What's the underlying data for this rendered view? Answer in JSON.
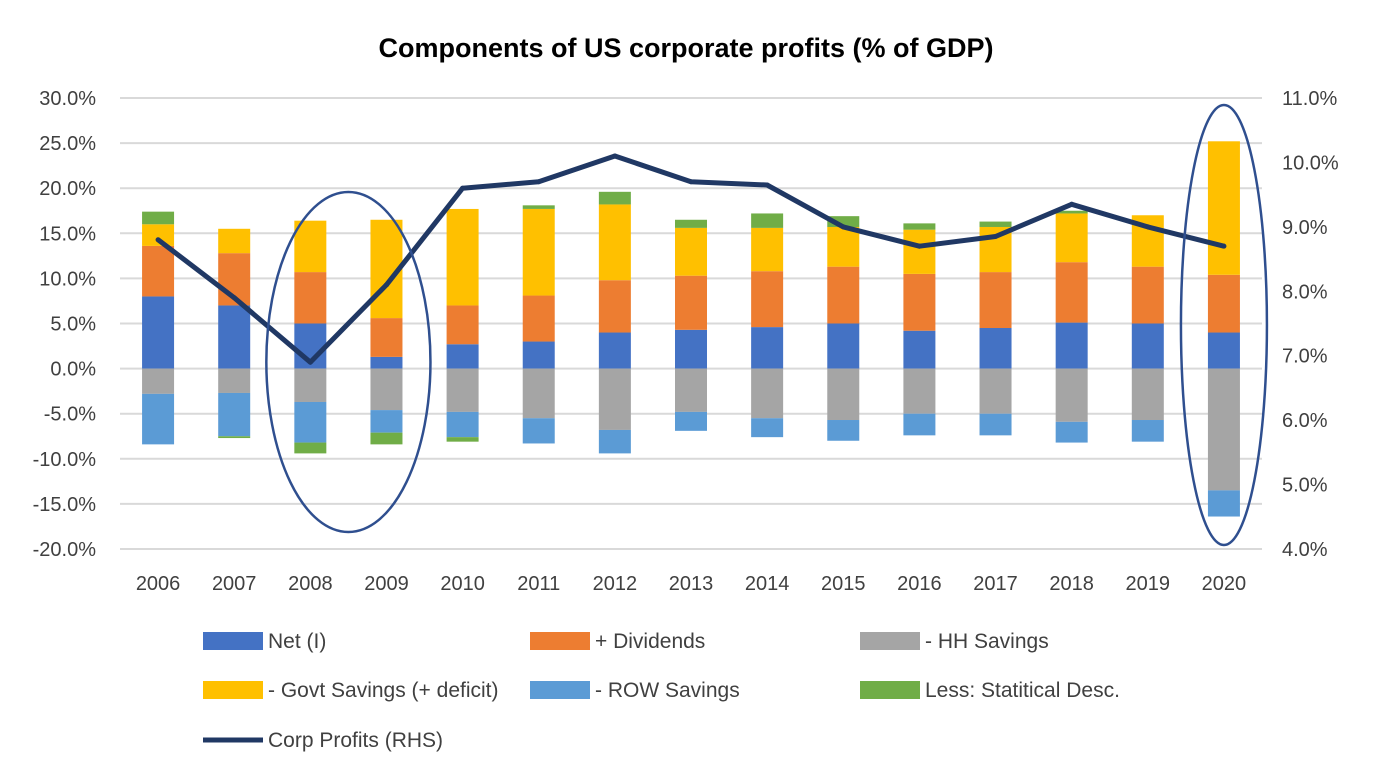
{
  "chart_data": {
    "type": "bar",
    "stacked": true,
    "title": "Components of US corporate profits (% of GDP)",
    "categories": [
      "2006",
      "2007",
      "2008",
      "2009",
      "2010",
      "2011",
      "2012",
      "2013",
      "2014",
      "2015",
      "2016",
      "2017",
      "2018",
      "2019",
      "2020"
    ],
    "y_left": {
      "min": -20,
      "max": 30,
      "step": 5,
      "tick_labels": [
        "-20.0%",
        "-15.0%",
        "-10.0%",
        "-5.0%",
        "0.0%",
        "5.0%",
        "10.0%",
        "15.0%",
        "20.0%",
        "25.0%",
        "30.0%"
      ]
    },
    "y_right": {
      "min": 4,
      "max": 11,
      "step": 1,
      "tick_labels": [
        "4.0%",
        "5.0%",
        "6.0%",
        "7.0%",
        "8.0%",
        "9.0%",
        "10.0%",
        "11.0%"
      ]
    },
    "positive_series": [
      {
        "name": "Net (I)",
        "color": "#4472c4",
        "values": [
          8.0,
          7.0,
          5.0,
          1.3,
          2.7,
          3.0,
          4.0,
          4.3,
          4.6,
          5.0,
          4.2,
          4.5,
          5.1,
          5.0,
          4.0
        ]
      },
      {
        "name": "+ Dividends",
        "color": "#ed7d31",
        "values": [
          5.6,
          5.8,
          5.7,
          4.3,
          4.3,
          5.1,
          5.8,
          6.0,
          6.2,
          6.3,
          6.3,
          6.2,
          6.7,
          6.3,
          6.4
        ]
      },
      {
        "name": "- Govt Savings (+ deficit)",
        "color": "#ffc000",
        "values": [
          2.4,
          2.7,
          5.7,
          10.9,
          10.7,
          9.6,
          8.4,
          5.3,
          4.8,
          4.4,
          4.9,
          5.0,
          5.4,
          5.7,
          14.8
        ]
      },
      {
        "name": "Less: Statitical Desc.",
        "color": "#70ad47",
        "values": [
          1.4,
          0.0,
          0.0,
          0.0,
          0.0,
          0.4,
          1.4,
          0.9,
          1.6,
          1.2,
          0.7,
          0.6,
          0.3,
          0.0,
          0.0
        ]
      }
    ],
    "negative_series": [
      {
        "name": "- HH Savings",
        "color": "#a5a5a5",
        "values": [
          -2.8,
          -2.7,
          -3.7,
          -4.6,
          -4.8,
          -5.5,
          -6.8,
          -4.8,
          -5.5,
          -5.7,
          -5.0,
          -5.0,
          -5.9,
          -5.7,
          -13.5
        ]
      },
      {
        "name": "- ROW Savings",
        "color": "#5b9bd5",
        "values": [
          -5.6,
          -4.8,
          -4.5,
          -2.5,
          -2.8,
          -2.8,
          -2.6,
          -2.1,
          -2.1,
          -2.3,
          -2.4,
          -2.4,
          -2.3,
          -2.4,
          -2.9
        ]
      },
      {
        "name": "Less: Statitical Desc.",
        "color": "#70ad47",
        "values": [
          0.0,
          -0.2,
          -1.2,
          -1.3,
          -0.5,
          0.0,
          0.0,
          0.0,
          0.0,
          0.0,
          0.0,
          0.0,
          0.0,
          0.0,
          0.0
        ]
      }
    ],
    "line_series": {
      "name": "Corp Profits (RHS)",
      "color": "#203864",
      "values": [
        8.8,
        7.9,
        6.9,
        8.1,
        9.6,
        9.7,
        10.1,
        9.7,
        9.65,
        9.0,
        8.7,
        8.85,
        9.35,
        9.0,
        8.7
      ]
    },
    "legend": {
      "position": "bottom",
      "items": [
        {
          "label": "Net (I)",
          "color": "#4472c4",
          "kind": "box"
        },
        {
          "label": "+ Dividends",
          "color": "#ed7d31",
          "kind": "box"
        },
        {
          "label": "- HH Savings",
          "color": "#a5a5a5",
          "kind": "box"
        },
        {
          "label": "- Govt Savings (+ deficit)",
          "color": "#ffc000",
          "kind": "box"
        },
        {
          "label": "- ROW Savings",
          "color": "#5b9bd5",
          "kind": "box"
        },
        {
          "label": "Less: Statitical Desc.",
          "color": "#70ad47",
          "kind": "box"
        },
        {
          "label": "Corp Profits (RHS)",
          "color": "#203864",
          "kind": "line"
        }
      ]
    },
    "annotations": [
      {
        "type": "ellipse",
        "around_categories": [
          "2008",
          "2009"
        ],
        "color": "#2f4f8f"
      },
      {
        "type": "ellipse",
        "around_categories": [
          "2020"
        ],
        "color": "#2f4f8f"
      }
    ],
    "gridlines": true
  }
}
